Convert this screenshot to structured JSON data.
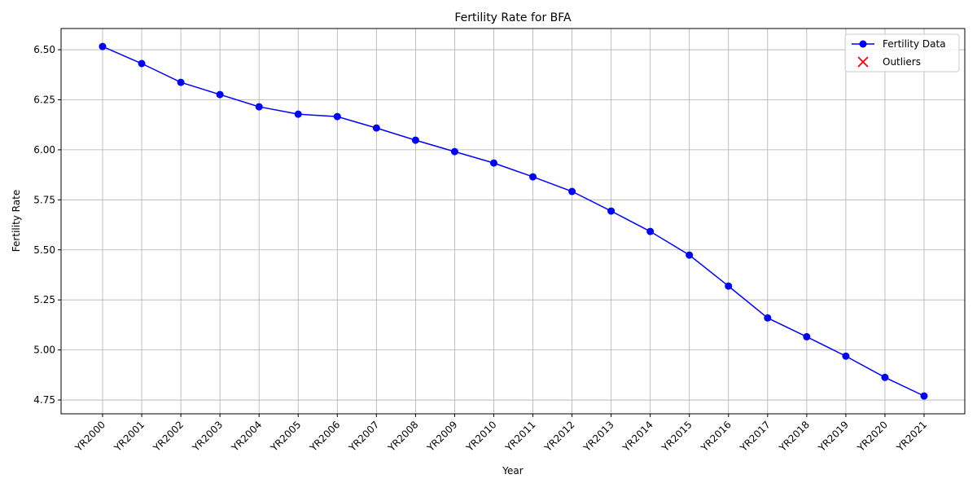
{
  "chart_data": {
    "type": "line",
    "title": "Fertility Rate for BFA",
    "xlabel": "Year",
    "ylabel": "Fertility Rate",
    "categories": [
      "YR2000",
      "YR2001",
      "YR2002",
      "YR2003",
      "YR2004",
      "YR2005",
      "YR2006",
      "YR2007",
      "YR2008",
      "YR2009",
      "YR2010",
      "YR2011",
      "YR2012",
      "YR2013",
      "YR2014",
      "YR2015",
      "YR2016",
      "YR2017",
      "YR2018",
      "YR2019",
      "YR2020",
      "YR2021"
    ],
    "series": [
      {
        "name": "Fertility Data",
        "color": "#0000ff",
        "marker": "o",
        "values": [
          6.516,
          6.431,
          6.337,
          6.276,
          6.215,
          6.178,
          6.166,
          6.109,
          6.048,
          5.991,
          5.934,
          5.865,
          5.792,
          5.694,
          5.592,
          5.474,
          5.319,
          5.16,
          5.066,
          4.969,
          4.863,
          4.77
        ]
      },
      {
        "name": "Outliers",
        "color": "#ff0000",
        "marker": "x",
        "values": [
          null,
          null,
          null,
          null,
          null,
          null,
          null,
          null,
          null,
          null,
          null,
          null,
          null,
          null,
          null,
          null,
          null,
          null,
          null,
          null,
          null,
          null
        ]
      }
    ],
    "ylim": [
      4.681,
      6.606
    ],
    "yticks": [
      {
        "value": 4.75,
        "label": "4.75"
      },
      {
        "value": 5.0,
        "label": "5.00"
      },
      {
        "value": 5.25,
        "label": "5.25"
      },
      {
        "value": 5.5,
        "label": "5.50"
      },
      {
        "value": 5.75,
        "label": "5.75"
      },
      {
        "value": 6.0,
        "label": "6.00"
      },
      {
        "value": 6.25,
        "label": "6.25"
      },
      {
        "value": 6.5,
        "label": "6.50"
      }
    ],
    "grid": true,
    "legend": "upper right"
  }
}
